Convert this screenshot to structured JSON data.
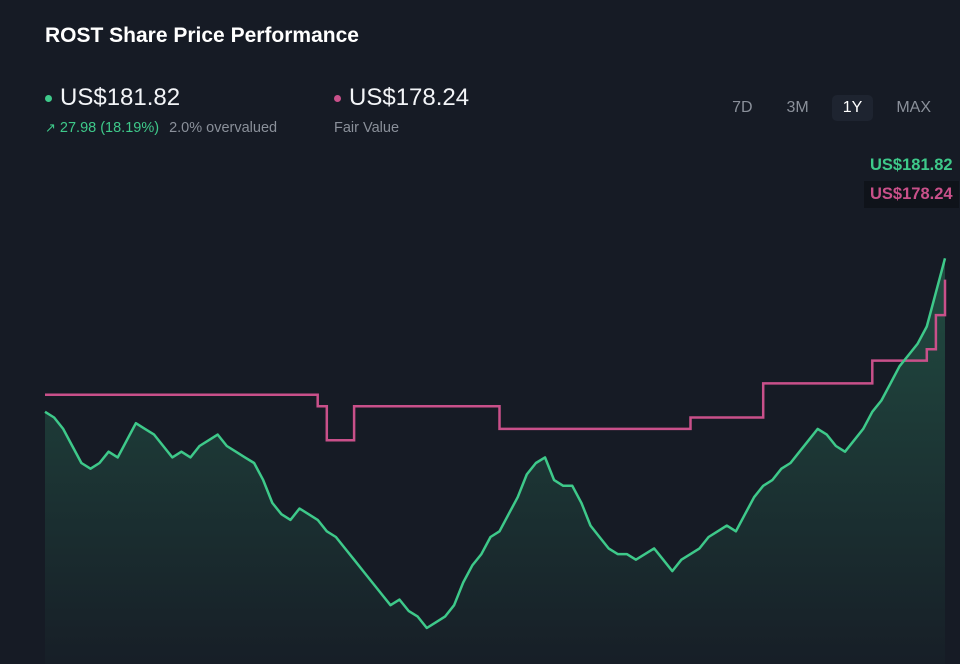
{
  "header": {
    "title": "ROST Share Price Performance"
  },
  "share_price": {
    "value": "US$181.82",
    "change": "27.98 (18.19%)",
    "valuation": "2.0% overvalued",
    "color": "#3ec98a"
  },
  "fair_value": {
    "value": "US$178.24",
    "label": "Fair Value",
    "color": "#c9508a"
  },
  "ranges": [
    {
      "label": "7D",
      "active": false
    },
    {
      "label": "3M",
      "active": false
    },
    {
      "label": "1Y",
      "active": true
    },
    {
      "label": "MAX",
      "active": false
    }
  ],
  "tags": {
    "share": "US$181.82",
    "fair": "US$178.24"
  },
  "chart_data": {
    "type": "line",
    "ylim": [
      117,
      194
    ],
    "x_points": 100,
    "series": [
      {
        "name": "Share Price",
        "color": "#3ec98a",
        "values": [
          155,
          154,
          152,
          149,
          146,
          145,
          146,
          148,
          147,
          150,
          153,
          152,
          151,
          149,
          147,
          148,
          147,
          149,
          150,
          151,
          149,
          148,
          147,
          146,
          143,
          139,
          137,
          136,
          138,
          137,
          136,
          134,
          133,
          131,
          129,
          127,
          125,
          123,
          121,
          122,
          120,
          119,
          117,
          118,
          119,
          121,
          125,
          128,
          130,
          133,
          134,
          137,
          140,
          144,
          146,
          147,
          143,
          142,
          142,
          139,
          135,
          133,
          131,
          130,
          130,
          129,
          130,
          131,
          129,
          127,
          129,
          130,
          131,
          133,
          134,
          135,
          134,
          137,
          140,
          142,
          143,
          145,
          146,
          148,
          150,
          152,
          151,
          149,
          148,
          150,
          152,
          155,
          157,
          160,
          163,
          165,
          167,
          170,
          176,
          182
        ]
      },
      {
        "name": "Fair Value",
        "color": "#c9508a",
        "step": true,
        "values": [
          158,
          158,
          158,
          158,
          158,
          158,
          158,
          158,
          158,
          158,
          158,
          158,
          158,
          158,
          158,
          158,
          158,
          158,
          158,
          158,
          158,
          158,
          158,
          158,
          158,
          158,
          158,
          158,
          158,
          158,
          156,
          150,
          150,
          150,
          156,
          156,
          156,
          156,
          156,
          156,
          156,
          156,
          156,
          156,
          156,
          156,
          156,
          156,
          156,
          156,
          152,
          152,
          152,
          152,
          152,
          152,
          152,
          152,
          152,
          152,
          152,
          152,
          152,
          152,
          152,
          152,
          152,
          152,
          152,
          152,
          152,
          154,
          154,
          154,
          154,
          154,
          154,
          154,
          154,
          160,
          160,
          160,
          160,
          160,
          160,
          160,
          160,
          160,
          160,
          160,
          160,
          164,
          164,
          164,
          164,
          164,
          164,
          166,
          172,
          178.24
        ]
      }
    ]
  }
}
